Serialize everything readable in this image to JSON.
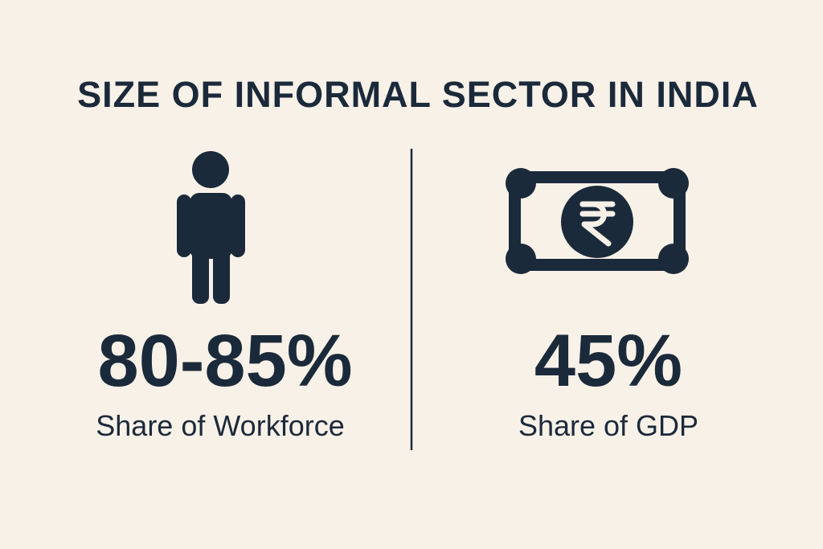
{
  "header": {
    "title": "SIZE OF INFORMAL SECTOR IN INDIA"
  },
  "stats": [
    {
      "value": "80-85%",
      "label": "Share of Workforce"
    },
    {
      "value": "45%",
      "label": "Share of GDP"
    }
  ]
}
